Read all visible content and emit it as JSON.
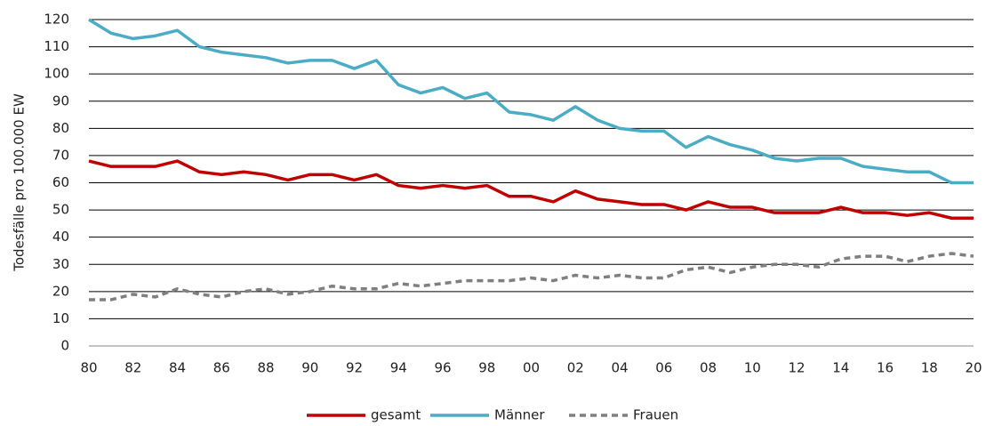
{
  "chart_data": {
    "type": "line",
    "y_label": "Todesfälle pro 100.000 EW",
    "categories": [
      "80",
      null,
      "82",
      null,
      "84",
      null,
      "86",
      null,
      "88",
      null,
      "90",
      null,
      "92",
      null,
      "94",
      null,
      "96",
      null,
      "98",
      null,
      "00",
      null,
      "02",
      null,
      "04",
      null,
      "06",
      null,
      "08",
      null,
      "10",
      null,
      "12",
      null,
      "14",
      null,
      "16",
      null,
      "18",
      null,
      "20"
    ],
    "series": [
      {
        "name": "gesamt",
        "color": "#c00000",
        "style": "solid",
        "values": [
          68,
          66,
          66,
          66,
          68,
          64,
          63,
          64,
          63,
          61,
          63,
          63,
          61,
          63,
          59,
          58,
          59,
          58,
          59,
          55,
          55,
          53,
          57,
          54,
          53,
          52,
          52,
          50,
          53,
          51,
          51,
          49,
          49,
          49,
          51,
          49,
          49,
          48,
          49,
          47,
          47
        ]
      },
      {
        "name": "Männer",
        "color": "#4bacc6",
        "style": "solid",
        "values": [
          120,
          115,
          113,
          114,
          116,
          110,
          108,
          107,
          106,
          104,
          105,
          105,
          102,
          105,
          96,
          93,
          95,
          91,
          93,
          86,
          85,
          83,
          88,
          83,
          80,
          79,
          79,
          73,
          77,
          74,
          72,
          69,
          68,
          69,
          69,
          66,
          65,
          64,
          64,
          60,
          60
        ]
      },
      {
        "name": "Frauen",
        "color": "#7f7f7f",
        "style": "dashed",
        "values": [
          17,
          17,
          19,
          18,
          21,
          19,
          18,
          20,
          21,
          19,
          20,
          22,
          21,
          21,
          23,
          22,
          23,
          24,
          24,
          24,
          25,
          24,
          26,
          25,
          26,
          25,
          25,
          28,
          29,
          27,
          29,
          30,
          30,
          29,
          32,
          33,
          33,
          31,
          33,
          34,
          33
        ]
      }
    ],
    "ylim": [
      0,
      120
    ],
    "yticks": [
      0,
      10,
      20,
      30,
      40,
      50,
      60,
      70,
      80,
      90,
      100,
      110,
      120
    ],
    "grid": true,
    "legend": "bottom"
  }
}
